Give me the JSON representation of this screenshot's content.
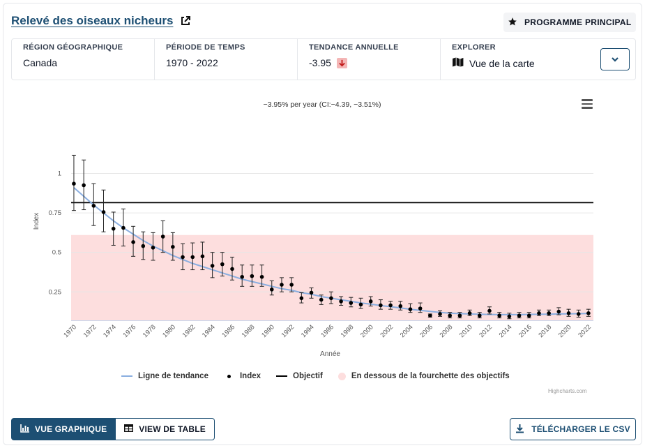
{
  "header": {
    "title": "Relevé des oiseaux nicheurs",
    "program_button": "PROGRAMME PRINCIPAL"
  },
  "info": {
    "region_label": "RÉGION GÉOGRAPHIQUE",
    "region_value": "Canada",
    "period_label": "PÉRIODE DE TEMPS",
    "period_value": "1970 - 2022",
    "trend_label": "TENDANCE ANNUELLE",
    "trend_value": "-3.95",
    "explore_label": "EXPLORER",
    "explore_value": "Vue de la carte"
  },
  "chart_data": {
    "type": "scatter",
    "subtitle": "−3.95% per year (CI:−4.39, −3.51%)",
    "xlabel": "Année",
    "ylabel": "Index",
    "xlim": [
      1969.3,
      2022.5
    ],
    "ylim": [
      0.07,
      1.17
    ],
    "xticks": [
      1970,
      1972,
      1974,
      1976,
      1978,
      1980,
      1982,
      1984,
      1986,
      1988,
      1990,
      1992,
      1994,
      1996,
      1998,
      2000,
      2002,
      2004,
      2006,
      2008,
      2010,
      2012,
      2014,
      2016,
      2018,
      2020,
      2022
    ],
    "yticks": [
      0.25,
      0.5,
      0.75,
      1
    ],
    "objective": 0.815,
    "goal_range_upper": 0.61,
    "years": [
      1970,
      1971,
      1972,
      1973,
      1974,
      1975,
      1976,
      1977,
      1978,
      1979,
      1980,
      1981,
      1982,
      1983,
      1984,
      1985,
      1986,
      1987,
      1988,
      1989,
      1990,
      1991,
      1992,
      1993,
      1994,
      1995,
      1996,
      1997,
      1998,
      1999,
      2000,
      2001,
      2002,
      2003,
      2004,
      2005,
      2006,
      2007,
      2008,
      2009,
      2010,
      2011,
      2012,
      2013,
      2014,
      2015,
      2016,
      2017,
      2018,
      2019,
      2020,
      2021,
      2022
    ],
    "index": [
      0.935,
      0.925,
      0.795,
      0.755,
      0.65,
      0.655,
      0.565,
      0.54,
      0.53,
      0.6,
      0.535,
      0.47,
      0.47,
      0.475,
      0.415,
      0.425,
      0.395,
      0.345,
      0.35,
      0.345,
      0.265,
      0.295,
      0.295,
      0.21,
      0.245,
      0.2,
      0.21,
      0.19,
      0.18,
      0.17,
      0.19,
      0.165,
      0.165,
      0.16,
      0.14,
      0.145,
      0.1,
      0.11,
      0.1,
      0.1,
      0.115,
      0.1,
      0.13,
      0.1,
      0.095,
      0.1,
      0.1,
      0.115,
      0.115,
      0.125,
      0.115,
      0.11,
      0.115
    ],
    "upper": [
      1.115,
      1.085,
      0.935,
      0.895,
      0.755,
      0.775,
      0.665,
      0.63,
      0.625,
      0.7,
      0.625,
      0.555,
      0.56,
      0.565,
      0.5,
      0.5,
      0.47,
      0.42,
      0.42,
      0.42,
      0.32,
      0.34,
      0.34,
      0.245,
      0.275,
      0.23,
      0.25,
      0.22,
      0.215,
      0.21,
      0.22,
      0.2,
      0.19,
      0.19,
      0.175,
      0.18,
      0.11,
      0.13,
      0.12,
      0.12,
      0.135,
      0.12,
      0.155,
      0.12,
      0.115,
      0.12,
      0.12,
      0.135,
      0.135,
      0.15,
      0.14,
      0.135,
      0.14
    ],
    "lower": [
      0.765,
      0.77,
      0.67,
      0.63,
      0.545,
      0.54,
      0.475,
      0.455,
      0.45,
      0.5,
      0.45,
      0.39,
      0.39,
      0.39,
      0.34,
      0.35,
      0.325,
      0.285,
      0.285,
      0.285,
      0.23,
      0.25,
      0.25,
      0.18,
      0.21,
      0.17,
      0.175,
      0.165,
      0.155,
      0.145,
      0.16,
      0.14,
      0.14,
      0.135,
      0.12,
      0.12,
      0.09,
      0.095,
      0.085,
      0.085,
      0.1,
      0.085,
      0.11,
      0.085,
      0.08,
      0.085,
      0.085,
      0.1,
      0.1,
      0.105,
      0.095,
      0.09,
      0.095
    ],
    "trend": [
      0.91,
      0.855,
      0.8,
      0.75,
      0.7,
      0.655,
      0.615,
      0.575,
      0.54,
      0.51,
      0.48,
      0.455,
      0.43,
      0.41,
      0.39,
      0.37,
      0.35,
      0.33,
      0.315,
      0.3,
      0.285,
      0.27,
      0.26,
      0.245,
      0.235,
      0.22,
      0.21,
      0.2,
      0.19,
      0.18,
      0.172,
      0.163,
      0.156,
      0.148,
      0.14,
      0.133,
      0.126,
      0.12,
      0.115,
      0.112,
      0.11,
      0.108,
      0.107,
      0.106,
      0.106,
      0.106,
      0.107,
      0.108,
      0.109,
      0.11,
      0.111,
      0.112,
      0.113
    ],
    "legend": [
      "Ligne de tendance",
      "Index",
      "Objectif",
      "En dessous de la fourchette des objectifs"
    ],
    "legend_position": "bottom",
    "colors": {
      "trend": "#8aaee0",
      "index": "#000000",
      "objective": "#000000",
      "band": "#fddede",
      "grid": "#e6e6e6"
    },
    "credits": "Highcharts.com"
  },
  "buttons": {
    "graph_view": "VUE GRAPHIQUE",
    "table_view": "VIEW DE TABLE",
    "download_csv": "TÉLÉCHARGER LE CSV"
  },
  "icons": {
    "external_link": "external-link-icon",
    "star": "star-icon",
    "down_arrow": "arrow-down-icon",
    "map": "map-icon",
    "chevron": "chevron-down-icon",
    "menu": "hamburger-menu-icon",
    "bar_chart": "bar-chart-icon",
    "table": "table-icon",
    "download": "download-icon"
  }
}
